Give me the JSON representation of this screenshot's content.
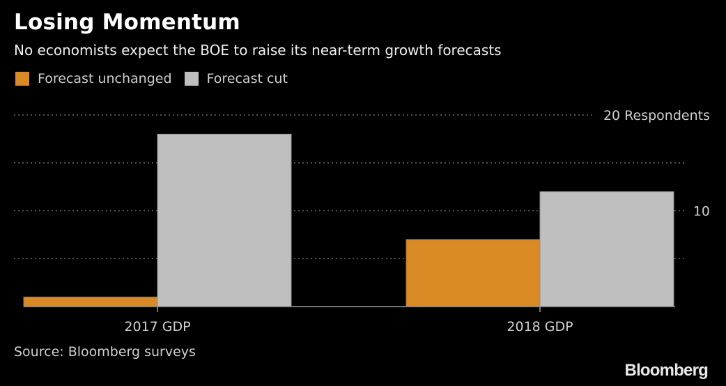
{
  "colors": {
    "background": "#000000",
    "forecast_unchanged": "#d98a25",
    "forecast_cut": "#bfbfbf",
    "grid": "#6e6e6e",
    "axis": "#9a9a9a",
    "text": "#d0d0d0"
  },
  "chart_data": {
    "type": "bar",
    "title": "Losing Momentum",
    "subtitle": "No economists expect the BOE to raise its near-term growth forecasts",
    "categories": [
      "2017 GDP",
      "2018 GDP"
    ],
    "series": [
      {
        "name": "Forecast unchanged",
        "values": [
          1,
          7
        ]
      },
      {
        "name": "Forecast cut",
        "values": [
          18,
          12
        ]
      }
    ],
    "xlabel": "",
    "ylabel": "Respondents",
    "ylim": [
      0,
      20
    ],
    "y_gridlines": [
      5,
      10,
      15,
      20
    ],
    "y_tick_labels": [
      {
        "value": 10,
        "label": "10"
      },
      {
        "value": 20,
        "label": "20 Respondents"
      }
    ],
    "grid": true,
    "grid_style": "dotted",
    "legend_position": "top-left",
    "source": "Source: Bloomberg surveys",
    "branding": "Bloomberg"
  }
}
